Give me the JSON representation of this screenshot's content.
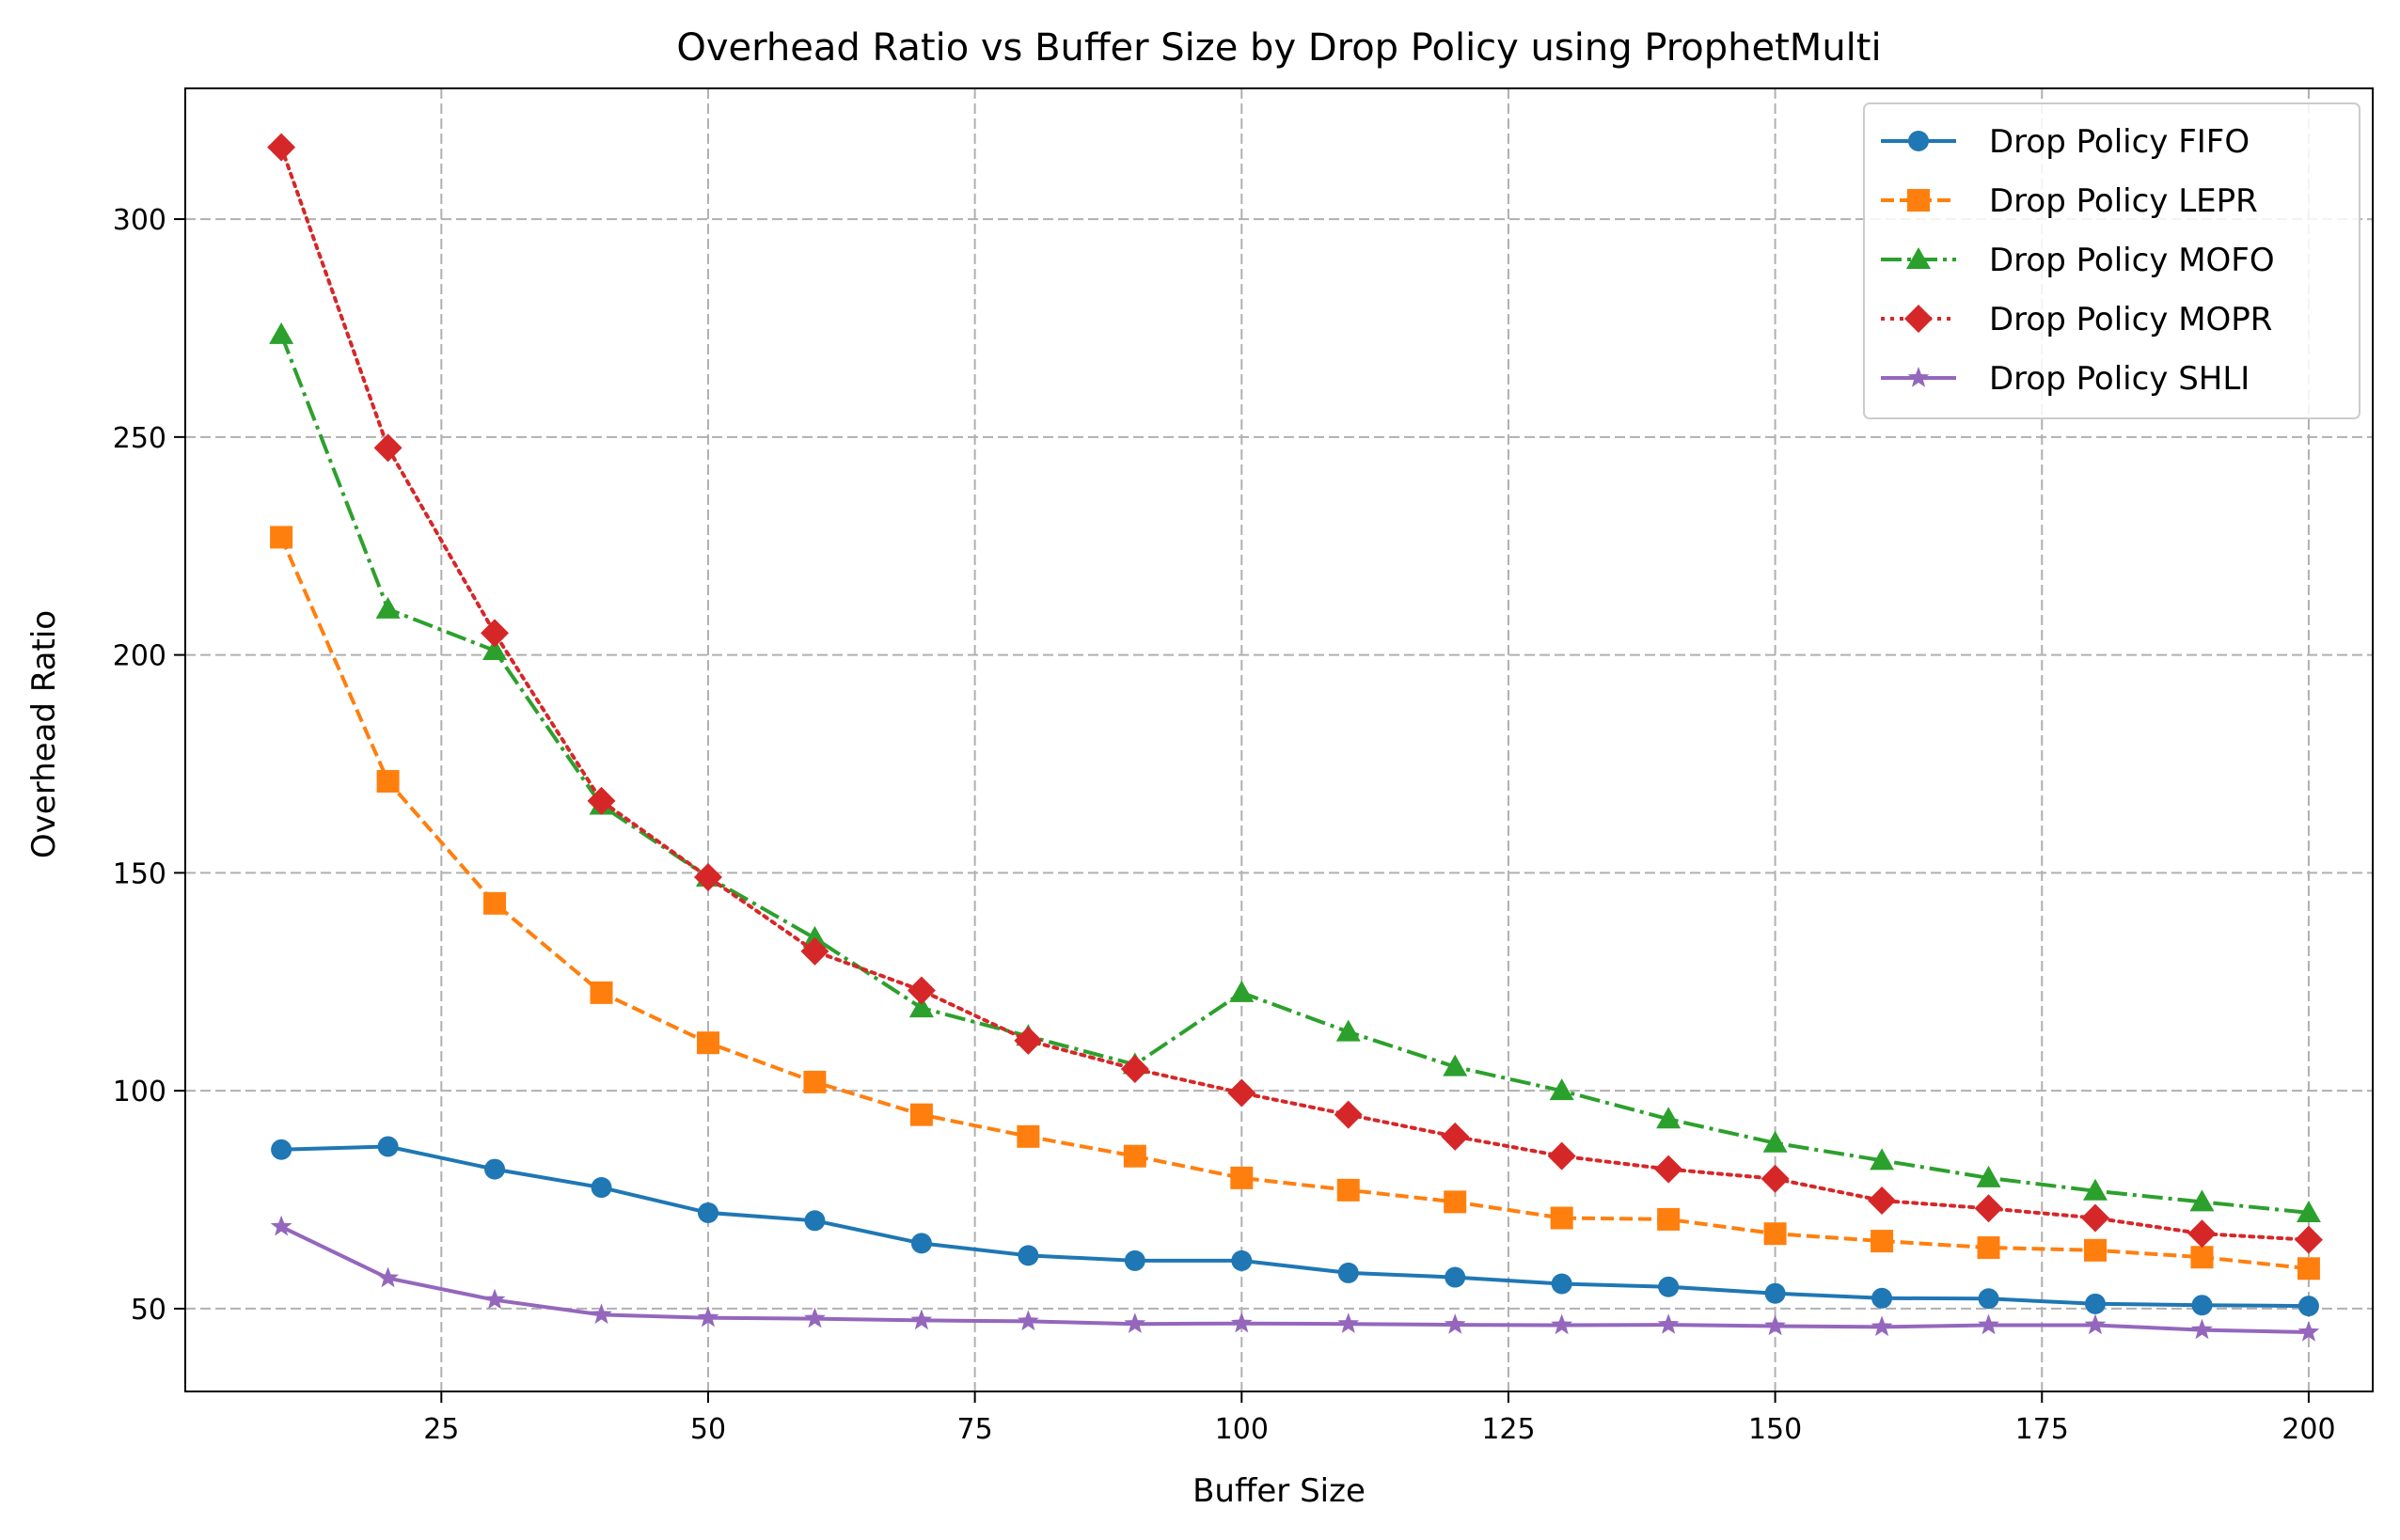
{
  "chart_data": {
    "type": "line",
    "title": "Overhead Ratio vs Buffer Size by Drop Policy using ProphetMulti",
    "xlabel": "Buffer Size",
    "ylabel": "Overhead Ratio",
    "xlim": [
      1,
      206
    ],
    "ylim": [
      31,
      330
    ],
    "xticks": [
      25,
      50,
      75,
      100,
      125,
      150,
      175,
      200
    ],
    "yticks": [
      50,
      100,
      150,
      200,
      250,
      300
    ],
    "grid": true,
    "legend_position": "top-right",
    "x": [
      10,
      20,
      30,
      40,
      50,
      60,
      70,
      80,
      90,
      100,
      110,
      120,
      130,
      140,
      150,
      160,
      170,
      180,
      190,
      200
    ],
    "series": [
      {
        "name": "Drop Policy FIFO",
        "color": "#1f77b4",
        "marker": "circle",
        "line_style": "solid",
        "values": [
          86.5,
          87.2,
          82.0,
          77.8,
          72.0,
          70.2,
          65.0,
          62.2,
          61.0,
          61.0,
          58.2,
          57.2,
          55.7,
          55.0,
          53.5,
          52.4,
          52.3,
          51.1,
          50.8,
          50.6
        ]
      },
      {
        "name": "Drop Policy LEPR",
        "color": "#ff7f0e",
        "marker": "square",
        "line_style": "dashed",
        "values": [
          227.0,
          171.0,
          143.0,
          122.5,
          111.0,
          102.0,
          94.5,
          89.5,
          85.0,
          80.0,
          77.2,
          74.5,
          70.8,
          70.5,
          67.2,
          65.5,
          64.0,
          63.4,
          61.8,
          59.2
        ]
      },
      {
        "name": "Drop Policy MOFO",
        "color": "#2ca02c",
        "marker": "triangle",
        "line_style": "dashdot",
        "values": [
          273.5,
          210.5,
          201.0,
          165.5,
          149.0,
          135.0,
          119.0,
          112.5,
          106.0,
          122.5,
          113.5,
          105.5,
          100.0,
          93.5,
          88.0,
          84.0,
          80.0,
          77.0,
          74.5,
          72.0
        ]
      },
      {
        "name": "Drop Policy MOPR",
        "color": "#d62728",
        "marker": "diamond",
        "line_style": "dotted",
        "values": [
          316.5,
          247.5,
          205.0,
          166.5,
          149.0,
          132.0,
          123.0,
          111.5,
          105.0,
          99.5,
          94.5,
          89.5,
          85.0,
          82.0,
          79.8,
          74.8,
          73.0,
          70.8,
          67.2,
          65.8
        ]
      },
      {
        "name": "Drop Policy SHLI",
        "color": "#9467bd",
        "marker": "star",
        "line_style": "solid",
        "values": [
          68.8,
          57.0,
          52.0,
          48.6,
          47.9,
          47.7,
          47.3,
          47.1,
          46.5,
          46.6,
          46.5,
          46.3,
          46.2,
          46.3,
          46.0,
          45.8,
          46.2,
          46.2,
          45.1,
          44.6
        ]
      }
    ]
  }
}
